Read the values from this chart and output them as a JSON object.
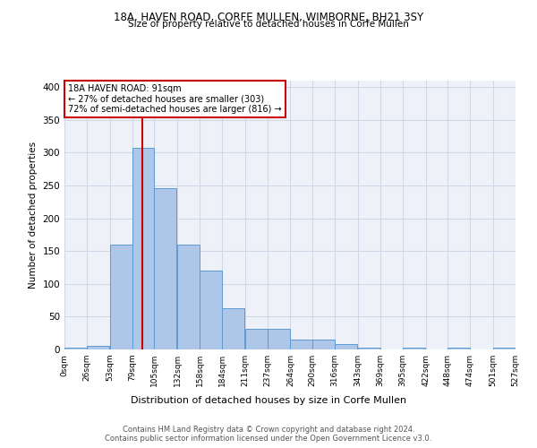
{
  "title1": "18A, HAVEN ROAD, CORFE MULLEN, WIMBORNE, BH21 3SY",
  "title2": "Size of property relative to detached houses in Corfe Mullen",
  "xlabel": "Distribution of detached houses by size in Corfe Mullen",
  "ylabel": "Number of detached properties",
  "footer1": "Contains HM Land Registry data © Crown copyright and database right 2024.",
  "footer2": "Contains public sector information licensed under the Open Government Licence v3.0.",
  "annotation_line1": "18A HAVEN ROAD: 91sqm",
  "annotation_line2": "← 27% of detached houses are smaller (303)",
  "annotation_line3": "72% of semi-detached houses are larger (816) →",
  "property_size": 91,
  "bin_edges": [
    0,
    26,
    53,
    79,
    105,
    132,
    158,
    184,
    211,
    237,
    264,
    290,
    316,
    343,
    369,
    395,
    422,
    448,
    474,
    501,
    527
  ],
  "bar_heights": [
    3,
    6,
    160,
    307,
    246,
    160,
    120,
    63,
    31,
    31,
    15,
    15,
    8,
    3,
    0,
    3,
    0,
    3,
    0,
    3
  ],
  "bar_color": "#aec6e8",
  "bar_edge_color": "#5b9bd5",
  "vline_color": "#cc0000",
  "vline_x": 91,
  "grid_color": "#d0d8e8",
  "bg_color": "#eef2f8",
  "annotation_box_color": "#ffffff",
  "annotation_box_edge": "#cc0000",
  "ylim": [
    0,
    410
  ],
  "yticks": [
    0,
    50,
    100,
    150,
    200,
    250,
    300,
    350,
    400
  ]
}
